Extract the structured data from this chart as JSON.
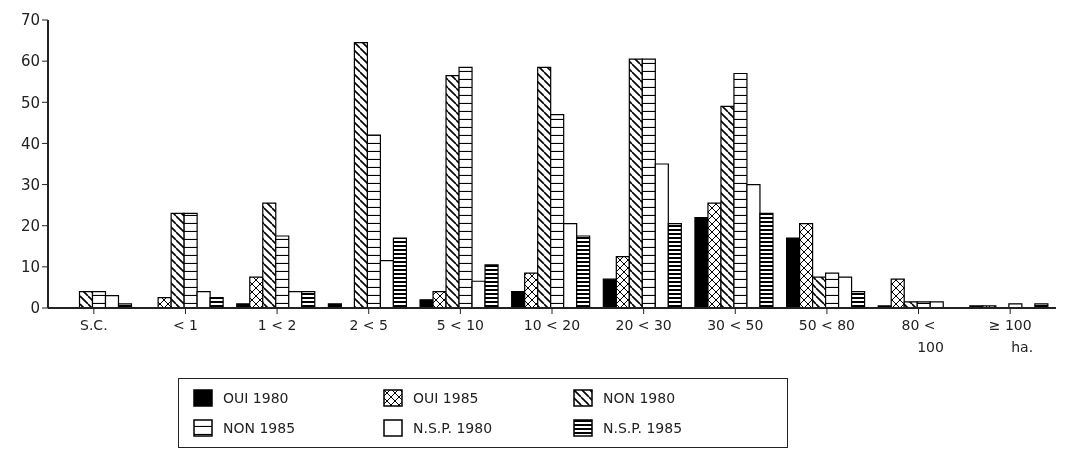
{
  "chart_data": {
    "type": "bar",
    "categories": [
      "S.C.",
      "< 1",
      "1 < 2",
      "2 < 5",
      "5 < 10",
      "10 < 20",
      "20 < 30",
      "30 < 50",
      "50 < 80",
      "80 < 100",
      "≥ 100 ha."
    ],
    "series": [
      {
        "name": "OUI 1980",
        "color": "#000000",
        "values": [
          0,
          0,
          1,
          1,
          2,
          4,
          7,
          22,
          17,
          0.5,
          0.5
        ]
      },
      {
        "name": "OUI 1985",
        "color": "#000000",
        "values": [
          0,
          2.5,
          7.5,
          0,
          4,
          8.5,
          12.5,
          25.5,
          20.5,
          7,
          0.5
        ]
      },
      {
        "name": "NON 1980",
        "color": "#000000",
        "values": [
          4,
          23,
          25.5,
          64.5,
          56.5,
          58.5,
          60.5,
          49,
          7.5,
          1.5,
          0
        ]
      },
      {
        "name": "NON 1985",
        "color": "#000000",
        "values": [
          4,
          23,
          17.5,
          42,
          58.5,
          47,
          60.5,
          57,
          8.5,
          1.5,
          1
        ]
      },
      {
        "name": "N.S.P. 1980",
        "color": "#000000",
        "values": [
          3,
          4,
          4,
          11.5,
          6.5,
          20.5,
          35,
          30,
          7.5,
          1.5,
          0
        ]
      },
      {
        "name": "N.S.P. 1985",
        "color": "#000000",
        "values": [
          1,
          2.5,
          4,
          17,
          10.5,
          17.5,
          20.5,
          23,
          4,
          0,
          1
        ]
      }
    ],
    "ylim": [
      0,
      70
    ],
    "yticks": [
      0,
      10,
      20,
      30,
      40,
      50,
      60,
      70
    ],
    "grid": false,
    "legend": "bottom"
  }
}
